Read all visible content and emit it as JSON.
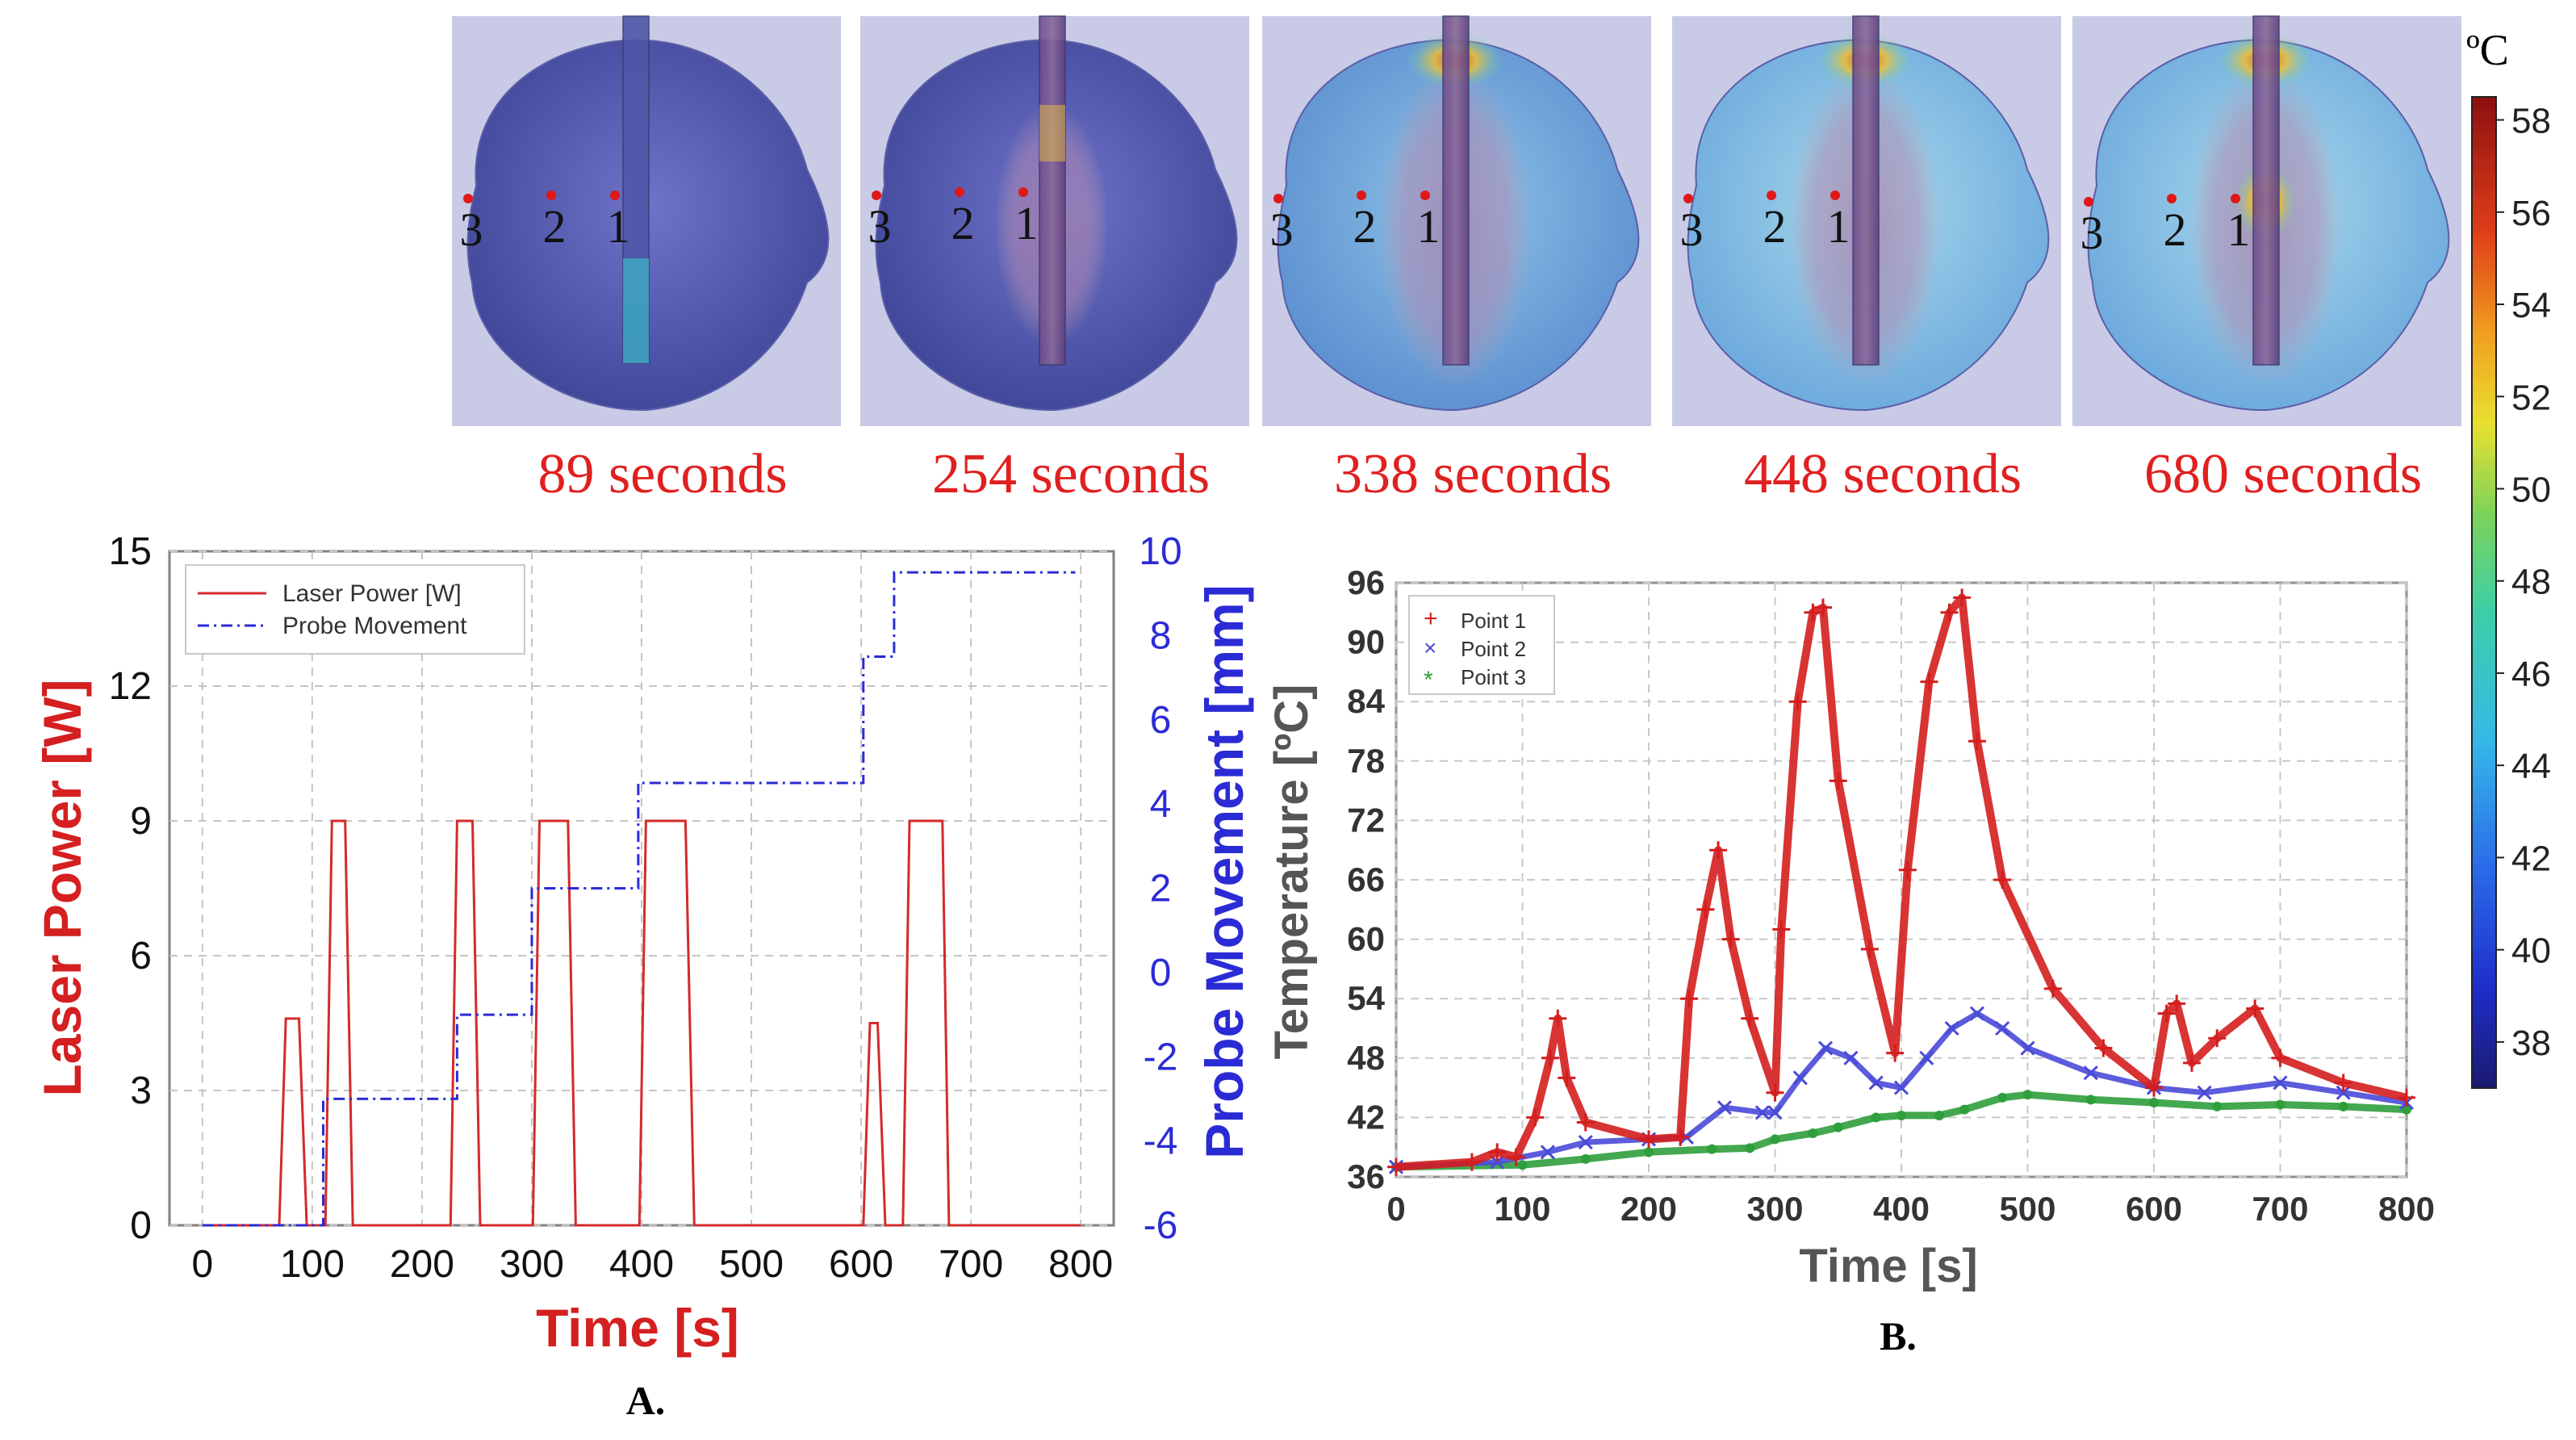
{
  "panels": [
    {
      "time_label": "89 seconds",
      "points": [
        "3",
        "2",
        "1"
      ]
    },
    {
      "time_label": "254 seconds",
      "points": [
        "3",
        "2",
        "1"
      ]
    },
    {
      "time_label": "338 seconds",
      "points": [
        "3",
        "2",
        "1"
      ]
    },
    {
      "time_label": "448 seconds",
      "points": [
        "3",
        "2",
        "1"
      ]
    },
    {
      "time_label": "680 seconds",
      "points": [
        "3",
        "2",
        "1"
      ]
    }
  ],
  "colorbar": {
    "unit": "ºC",
    "ticks": [
      "58",
      "56",
      "54",
      "52",
      "50",
      "48",
      "46",
      "44",
      "42",
      "40",
      "38"
    ],
    "range": [
      37,
      58
    ]
  },
  "colors": {
    "laser": "#d42a2a",
    "probe": "#2b2bd6",
    "point1": "#d41e1e",
    "point2": "#4a4ad8",
    "point3": "#2f9e3c",
    "label_red": "#d42020"
  },
  "chart_data": [
    {
      "type": "line",
      "panel_label": "A.",
      "xlabel": "Time [s]",
      "ylabel": "Laser Power [W]",
      "y2label": "Probe Movement [mm]",
      "xlim": [
        -30,
        830
      ],
      "ylim": [
        0,
        15
      ],
      "y2lim": [
        -6,
        10
      ],
      "xticks": [
        "0",
        "100",
        "200",
        "300",
        "400",
        "500",
        "600",
        "700",
        "800"
      ],
      "yticks": [
        "0",
        "3",
        "6",
        "9",
        "12",
        "15"
      ],
      "y2ticks": [
        "-6",
        "-4",
        "-2",
        "0",
        "2",
        "4",
        "6",
        "8",
        "10"
      ],
      "grid": true,
      "legend_position": "top-left",
      "series": [
        {
          "name": "Laser Power [W]",
          "axis": "left",
          "x": [
            0,
            70,
            76,
            88,
            95,
            112,
            118,
            130,
            137,
            150,
            226,
            232,
            246,
            253,
            262,
            301,
            307,
            333,
            340,
            348,
            398,
            404,
            440,
            448,
            460,
            602,
            608,
            615,
            622,
            632,
            638,
            644,
            674,
            680,
            690,
            800
          ],
          "y": [
            0,
            0,
            4.6,
            4.6,
            0,
            0,
            9,
            9,
            0,
            0,
            0,
            9,
            9,
            0,
            0,
            0,
            9,
            9,
            0,
            0,
            0,
            9,
            9,
            0,
            0,
            0,
            4.5,
            4.5,
            0,
            0,
            0,
            9,
            9,
            0,
            0,
            0
          ]
        },
        {
          "name": "Probe Movement",
          "axis": "right",
          "x": [
            0,
            110,
            110,
            232,
            232,
            300,
            300,
            397,
            397,
            602,
            602,
            630,
            630,
            795
          ],
          "y": [
            -6,
            -6,
            -3,
            -3,
            -1,
            -1,
            2,
            2,
            4.5,
            4.5,
            7.5,
            7.5,
            9.5,
            9.5
          ]
        }
      ]
    },
    {
      "type": "scatter",
      "panel_label": "B.",
      "xlabel": "Time [s]",
      "ylabel": "Temperature [ºC]",
      "xlim": [
        0,
        800
      ],
      "ylim": [
        36,
        96
      ],
      "xticks": [
        "0",
        "100",
        "200",
        "300",
        "400",
        "500",
        "600",
        "700",
        "800"
      ],
      "yticks": [
        "36",
        "42",
        "48",
        "54",
        "60",
        "66",
        "72",
        "78",
        "84",
        "90",
        "96"
      ],
      "grid": true,
      "legend_position": "top-left",
      "series": [
        {
          "name": "Point 1",
          "marker": "+",
          "x": [
            0,
            60,
            80,
            95,
            110,
            122,
            128,
            135,
            150,
            200,
            225,
            232,
            245,
            255,
            265,
            280,
            300,
            305,
            318,
            330,
            338,
            350,
            375,
            395,
            405,
            422,
            438,
            448,
            460,
            480,
            520,
            560,
            600,
            610,
            618,
            630,
            650,
            680,
            700,
            750,
            800
          ],
          "y": [
            37,
            37.5,
            38.5,
            38,
            42,
            48,
            52,
            46,
            41.5,
            39.8,
            40,
            54,
            63,
            69,
            60,
            52,
            44.5,
            61,
            84,
            93,
            93.5,
            76,
            59,
            48.5,
            67,
            86,
            93,
            94.5,
            80,
            66,
            55,
            49,
            45,
            52.5,
            53.5,
            47.5,
            50,
            53,
            48,
            45.5,
            44
          ]
        },
        {
          "name": "Point 2",
          "marker": "x",
          "x": [
            0,
            80,
            120,
            150,
            200,
            230,
            260,
            290,
            300,
            320,
            340,
            360,
            380,
            400,
            420,
            440,
            460,
            480,
            500,
            550,
            600,
            640,
            700,
            750,
            800
          ],
          "y": [
            37,
            37.5,
            38.5,
            39.5,
            39.8,
            40,
            43,
            42.5,
            42.5,
            46,
            49,
            48,
            45.5,
            45,
            48,
            51,
            52.5,
            51,
            49,
            46.5,
            45,
            44.5,
            45.5,
            44.5,
            43.5
          ]
        },
        {
          "name": "Point 3",
          "marker": "*",
          "x": [
            0,
            100,
            150,
            200,
            250,
            280,
            300,
            330,
            350,
            380,
            400,
            430,
            450,
            480,
            500,
            550,
            600,
            650,
            700,
            750,
            800
          ],
          "y": [
            37,
            37.2,
            37.8,
            38.5,
            38.8,
            38.9,
            39.8,
            40.4,
            41,
            42,
            42.2,
            42.2,
            42.8,
            44,
            44.3,
            43.8,
            43.5,
            43.1,
            43.3,
            43.1,
            42.8
          ]
        }
      ]
    }
  ]
}
